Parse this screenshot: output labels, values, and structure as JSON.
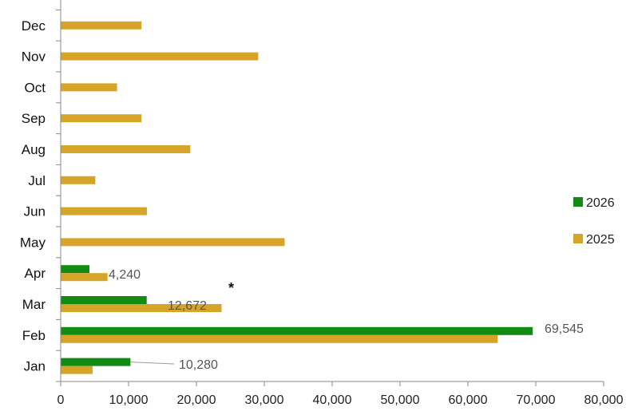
{
  "chart_data": {
    "type": "bar",
    "orientation": "horizontal",
    "categories": [
      "Jan",
      "Feb",
      "Mar",
      "Apr",
      "May",
      "Jun",
      "Jul",
      "Aug",
      "Sep",
      "Oct",
      "Nov",
      "Dec"
    ],
    "series": [
      {
        "name": "2026",
        "color": "#138a13",
        "values": [
          10280,
          69545,
          12672,
          4240,
          null,
          null,
          null,
          null,
          null,
          null,
          null,
          null
        ]
      },
      {
        "name": "2025",
        "color": "#d7a42a",
        "values": [
          4700,
          64400,
          23700,
          6900,
          33000,
          12700,
          5100,
          19100,
          11900,
          8300,
          29100,
          11900
        ]
      }
    ],
    "data_labels": [
      {
        "category": "Jan",
        "series": "2026",
        "text": "10,280"
      },
      {
        "category": "Feb",
        "series": "2026",
        "text": "69,545"
      },
      {
        "category": "Mar",
        "series": "2026",
        "text": "12,672"
      },
      {
        "category": "Apr",
        "series": "2026",
        "text": "4,240"
      }
    ],
    "annotation": "*",
    "x_ticks": [
      "0",
      "10,000",
      "20,000",
      "30,000",
      "40,000",
      "50,000",
      "60,000",
      "70,000",
      "80,000"
    ],
    "xlim": [
      0,
      80000
    ],
    "grid": false,
    "legend_position": "right",
    "title": ""
  }
}
